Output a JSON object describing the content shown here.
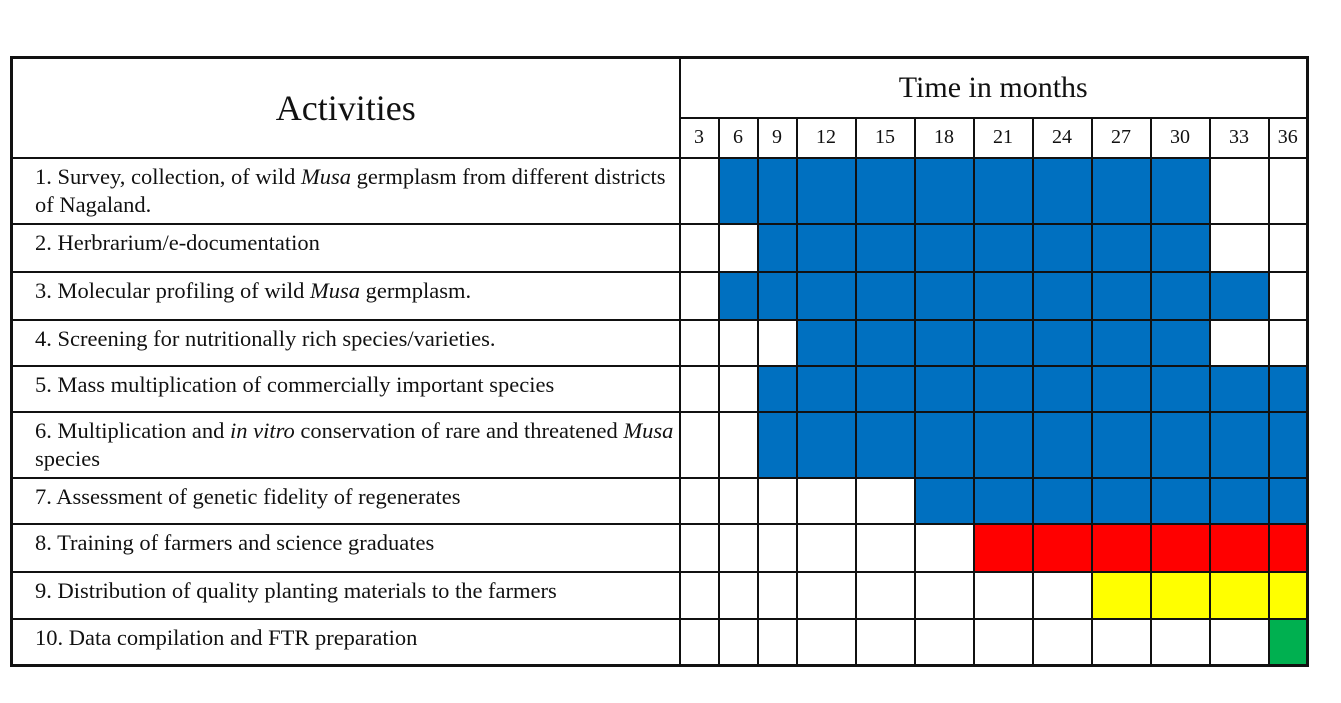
{
  "header": {
    "activities_label": "Activities",
    "time_label": "Time in months"
  },
  "months": [
    "3",
    "6",
    "9",
    "12",
    "15",
    "18",
    "21",
    "24",
    "27",
    "30",
    "33",
    "36"
  ],
  "colors": {
    "blue": "#0070c0",
    "red": "#ff0000",
    "yellow": "#ffff00",
    "green": "#00b050"
  },
  "activities": [
    {
      "text": "1. Survey, collection,  of wild *Musa* germplasm from different districts of Nagaland.",
      "color": "blue",
      "start": "6",
      "end": "30"
    },
    {
      "text": "2. Herbrarium/e-documentation",
      "color": "blue",
      "start": "9",
      "end": "30"
    },
    {
      "text": "3. Molecular profiling of wild *Musa* germplasm.",
      "color": "blue",
      "start": "6",
      "end": "33"
    },
    {
      "text": "4. Screening for nutritionally rich species/varieties.",
      "color": "blue",
      "start": "12",
      "end": "30"
    },
    {
      "text": "5. Mass multiplication of commercially important species",
      "color": "blue",
      "start": "9",
      "end": "36"
    },
    {
      "text": "6. Multiplication and *in vitro* conservation of rare and threatened *Musa* species",
      "color": "blue",
      "start": "9",
      "end": "36"
    },
    {
      "text": "7. Assessment of genetic fidelity of regenerates",
      "color": "blue",
      "start": "18",
      "end": "36"
    },
    {
      "text": "8. Training of farmers and science graduates",
      "color": "red",
      "start": "21",
      "end": "36"
    },
    {
      "text": "9. Distribution of quality planting materials to the farmers",
      "color": "yellow",
      "start": "27",
      "end": "36"
    },
    {
      "text": "10. Data compilation and FTR preparation",
      "color": "green",
      "start": "36",
      "end": "36"
    }
  ]
}
